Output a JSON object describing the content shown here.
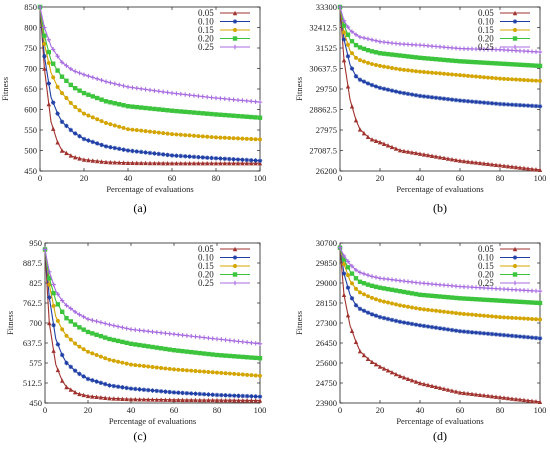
{
  "chart_data": [
    {
      "id": "a",
      "type": "line",
      "caption": "(a)",
      "xlabel": "Percentage of evaluations",
      "ylabel": "Fitness",
      "xlim": [
        0,
        100
      ],
      "ylim": [
        450,
        850
      ],
      "xticks": [
        "0",
        "20",
        "40",
        "60",
        "80",
        "100"
      ],
      "yticks": [
        "450",
        "500",
        "550",
        "600",
        "650",
        "700",
        "750",
        "800",
        "850"
      ],
      "legend_position": "top-right",
      "series": [
        {
          "name": "0.05",
          "color": "#a0322e",
          "marker": "triangle",
          "x": [
            0,
            2,
            5,
            8,
            10,
            15,
            20,
            30,
            40,
            60,
            80,
            100
          ],
          "y": [
            850,
            700,
            570,
            520,
            500,
            485,
            478,
            472,
            470,
            469,
            469,
            469
          ]
        },
        {
          "name": "0.10",
          "color": "#1f3fa6",
          "marker": "star",
          "x": [
            0,
            2,
            5,
            8,
            10,
            15,
            20,
            30,
            40,
            60,
            80,
            100
          ],
          "y": [
            850,
            730,
            630,
            590,
            570,
            545,
            528,
            510,
            500,
            488,
            481,
            475
          ]
        },
        {
          "name": "0.15",
          "color": "#d4a500",
          "marker": "circle",
          "x": [
            0,
            2,
            5,
            8,
            10,
            15,
            20,
            30,
            40,
            60,
            80,
            100
          ],
          "y": [
            850,
            760,
            690,
            655,
            640,
            610,
            590,
            567,
            552,
            540,
            532,
            527
          ]
        },
        {
          "name": "0.20",
          "color": "#3cc43c",
          "marker": "square",
          "x": [
            0,
            2,
            5,
            8,
            10,
            15,
            20,
            30,
            40,
            60,
            80,
            100
          ],
          "y": [
            850,
            780,
            720,
            695,
            680,
            655,
            640,
            620,
            608,
            597,
            588,
            580
          ]
        },
        {
          "name": "0.25",
          "color": "#a86be0",
          "marker": "plus",
          "x": [
            0,
            2,
            5,
            8,
            10,
            15,
            20,
            30,
            40,
            60,
            80,
            100
          ],
          "y": [
            850,
            800,
            755,
            730,
            715,
            695,
            685,
            668,
            655,
            640,
            628,
            618
          ]
        }
      ]
    },
    {
      "id": "b",
      "type": "line",
      "caption": "(b)",
      "xlabel": "Percentage of evaluations",
      "ylabel": "Fitness",
      "xlim": [
        0,
        100
      ],
      "ylim": [
        26200,
        33300
      ],
      "xticks": [
        "0",
        "20",
        "40",
        "60",
        "80",
        "100"
      ],
      "yticks": [
        "26200",
        "27087.5",
        "27975",
        "28862.5",
        "29750",
        "30637.5",
        "31525",
        "32412.5",
        "33300"
      ],
      "legend_position": "top-right",
      "series": [
        {
          "name": "0.05",
          "color": "#a0322e",
          "marker": "triangle",
          "x": [
            0,
            2,
            5,
            8,
            10,
            15,
            20,
            30,
            40,
            50,
            60,
            80,
            100
          ],
          "y": [
            33300,
            31000,
            29300,
            28400,
            28000,
            27600,
            27450,
            27100,
            26950,
            26800,
            26650,
            26450,
            26250
          ]
        },
        {
          "name": "0.10",
          "color": "#1f3fa6",
          "marker": "star",
          "x": [
            0,
            2,
            5,
            8,
            10,
            15,
            20,
            30,
            40,
            60,
            80,
            100
          ],
          "y": [
            33300,
            31900,
            30800,
            30300,
            30150,
            29950,
            29800,
            29600,
            29450,
            29250,
            29100,
            29000
          ]
        },
        {
          "name": "0.15",
          "color": "#d4a500",
          "marker": "circle",
          "x": [
            0,
            2,
            5,
            8,
            10,
            15,
            20,
            30,
            40,
            60,
            80,
            100
          ],
          "y": [
            33300,
            32200,
            31400,
            31100,
            31000,
            30850,
            30750,
            30600,
            30500,
            30350,
            30200,
            30100
          ]
        },
        {
          "name": "0.20",
          "color": "#3cc43c",
          "marker": "square",
          "x": [
            0,
            2,
            5,
            8,
            10,
            15,
            20,
            30,
            40,
            60,
            80,
            100
          ],
          "y": [
            33300,
            32500,
            31900,
            31650,
            31550,
            31400,
            31300,
            31200,
            31100,
            30950,
            30850,
            30750
          ]
        },
        {
          "name": "0.25",
          "color": "#a86be0",
          "marker": "plus",
          "x": [
            0,
            2,
            5,
            8,
            10,
            15,
            20,
            30,
            40,
            60,
            80,
            100
          ],
          "y": [
            33300,
            32700,
            32300,
            32100,
            32000,
            31900,
            31800,
            31700,
            31650,
            31500,
            31450,
            31350
          ]
        }
      ]
    },
    {
      "id": "c",
      "type": "line",
      "caption": "(c)",
      "xlabel": "Percentage of evaluations",
      "ylabel": "Fitness",
      "xlim": [
        0,
        100
      ],
      "ylim": [
        450,
        950
      ],
      "xticks": [
        "0",
        "20",
        "40",
        "60",
        "80",
        "100"
      ],
      "yticks": [
        "450",
        "512.5",
        "575",
        "637.5",
        "700",
        "762.5",
        "825",
        "887.5",
        "950"
      ],
      "legend_position": "top-right",
      "series": [
        {
          "name": "0.05",
          "color": "#a0322e",
          "marker": "triangle",
          "x": [
            0,
            2,
            5,
            8,
            10,
            15,
            20,
            30,
            40,
            60,
            80,
            100
          ],
          "y": [
            930,
            700,
            570,
            520,
            500,
            480,
            472,
            465,
            462,
            460,
            459,
            458
          ]
        },
        {
          "name": "0.10",
          "color": "#1f3fa6",
          "marker": "star",
          "x": [
            0,
            2,
            5,
            8,
            10,
            15,
            20,
            30,
            40,
            60,
            80,
            100
          ],
          "y": [
            930,
            780,
            650,
            600,
            575,
            545,
            525,
            505,
            495,
            483,
            475,
            470
          ]
        },
        {
          "name": "0.15",
          "color": "#d4a500",
          "marker": "circle",
          "x": [
            0,
            2,
            5,
            8,
            10,
            15,
            20,
            30,
            40,
            60,
            80,
            100
          ],
          "y": [
            930,
            820,
            720,
            680,
            660,
            630,
            610,
            585,
            570,
            555,
            545,
            535
          ]
        },
        {
          "name": "0.20",
          "color": "#3cc43c",
          "marker": "square",
          "x": [
            0,
            2,
            5,
            8,
            10,
            15,
            20,
            30,
            40,
            60,
            80,
            100
          ],
          "y": [
            930,
            840,
            770,
            735,
            715,
            690,
            672,
            650,
            635,
            615,
            600,
            590
          ]
        },
        {
          "name": "0.25",
          "color": "#a86be0",
          "marker": "plus",
          "x": [
            0,
            2,
            5,
            8,
            10,
            15,
            20,
            30,
            40,
            60,
            80,
            100
          ],
          "y": [
            930,
            860,
            800,
            770,
            755,
            730,
            712,
            695,
            680,
            665,
            650,
            635
          ]
        }
      ]
    },
    {
      "id": "d",
      "type": "line",
      "caption": "(d)",
      "xlabel": "Percentage of evaluations",
      "ylabel": "Fitness",
      "xlim": [
        0,
        100
      ],
      "ylim": [
        23900,
        30700
      ],
      "xticks": [
        "0",
        "20",
        "40",
        "60",
        "80",
        "100"
      ],
      "yticks": [
        "23900",
        "24750",
        "25600",
        "26450",
        "27300",
        "28150",
        "29000",
        "29850",
        "30700"
      ],
      "legend_position": "top-right",
      "series": [
        {
          "name": "0.05",
          "color": "#a0322e",
          "marker": "triangle",
          "x": [
            0,
            2,
            5,
            8,
            10,
            15,
            20,
            30,
            40,
            50,
            60,
            80,
            100
          ],
          "y": [
            30500,
            28500,
            27200,
            26500,
            26100,
            25700,
            25450,
            25050,
            24750,
            24550,
            24350,
            24150,
            23950
          ]
        },
        {
          "name": "0.10",
          "color": "#1f3fa6",
          "marker": "star",
          "x": [
            0,
            2,
            5,
            8,
            10,
            15,
            20,
            30,
            40,
            60,
            80,
            100
          ],
          "y": [
            30500,
            29400,
            28500,
            28050,
            27900,
            27700,
            27550,
            27350,
            27200,
            26950,
            26800,
            26650
          ]
        },
        {
          "name": "0.15",
          "color": "#d4a500",
          "marker": "circle",
          "x": [
            0,
            2,
            5,
            8,
            10,
            15,
            20,
            30,
            40,
            60,
            80,
            100
          ],
          "y": [
            30500,
            29800,
            29100,
            28750,
            28600,
            28400,
            28250,
            28050,
            27900,
            27700,
            27550,
            27450
          ]
        },
        {
          "name": "0.20",
          "color": "#3cc43c",
          "marker": "square",
          "x": [
            0,
            2,
            5,
            8,
            10,
            15,
            20,
            30,
            40,
            60,
            80,
            100
          ],
          "y": [
            30500,
            30000,
            29500,
            29200,
            29050,
            28900,
            28800,
            28650,
            28500,
            28350,
            28250,
            28150
          ]
        },
        {
          "name": "0.25",
          "color": "#a86be0",
          "marker": "plus",
          "x": [
            0,
            2,
            5,
            8,
            10,
            15,
            20,
            30,
            40,
            60,
            80,
            100
          ],
          "y": [
            30500,
            30150,
            29800,
            29550,
            29450,
            29300,
            29200,
            29100,
            29000,
            28850,
            28750,
            28650
          ]
        }
      ]
    }
  ]
}
